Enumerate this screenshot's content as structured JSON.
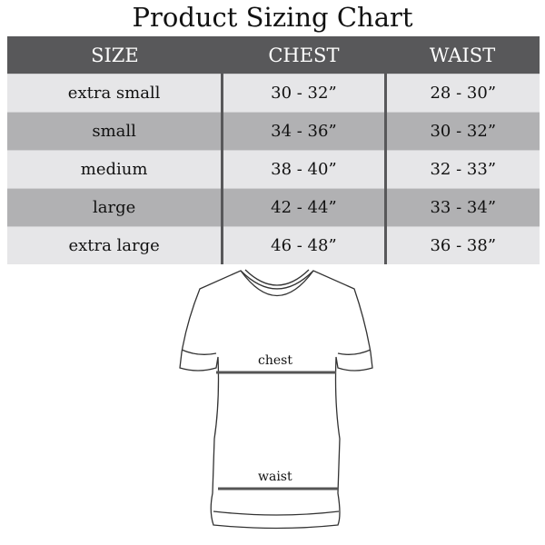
{
  "title": "Product Sizing Chart",
  "table": {
    "headers": [
      "SIZE",
      "CHEST",
      "WAIST"
    ],
    "rows": [
      [
        "extra small",
        "30 - 32”",
        "28 - 30”"
      ],
      [
        "small",
        "34 - 36”",
        "30 - 32”"
      ],
      [
        "medium",
        "38 - 40”",
        "32 - 33”"
      ],
      [
        "large",
        "42 - 44”",
        "33 - 34”"
      ],
      [
        "extra large",
        "46 - 48”",
        "36 - 38”"
      ]
    ]
  },
  "diagram": {
    "chest_label": "chest",
    "waist_label": "waist"
  },
  "colors": {
    "header": "#58585a",
    "row_light": "#e6e6e8",
    "row_dark": "#b1b1b3"
  }
}
